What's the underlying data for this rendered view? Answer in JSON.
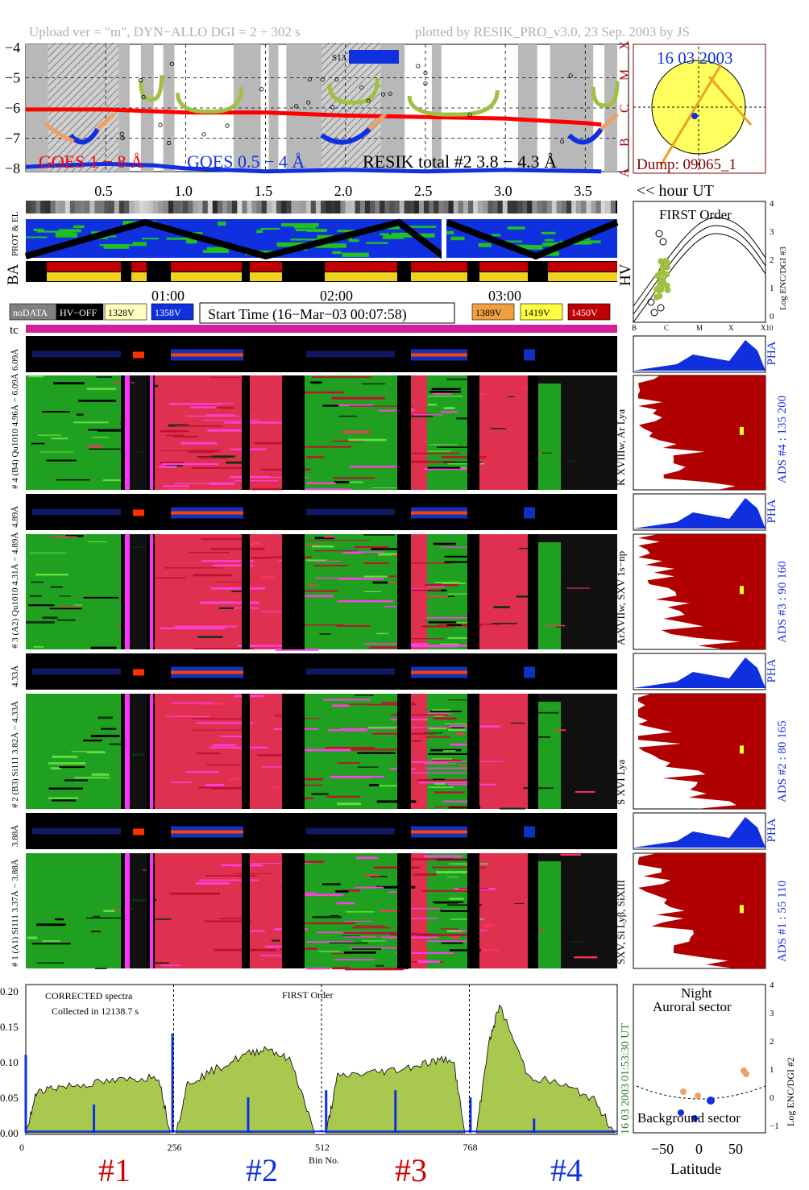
{
  "header": {
    "left": "Upload ver = \"m\", DYN−ALLO DGI =   2 ÷ 302 s",
    "right": "plotted by RESIK_PRO_v3.0, 23 Sep. 2003 by JS"
  },
  "goes": {
    "y_ticks": [
      "−4",
      "−5",
      "−6",
      "−7",
      "−8"
    ],
    "x_ticks": [
      "0.5",
      "1.0",
      "1.5",
      "2.0",
      "2.5",
      "3.0",
      "3.5"
    ],
    "class_letters": [
      "X",
      "M",
      "C",
      "B",
      "A"
    ],
    "label_red": "GOES 1 − 8 Å",
    "label_blue": "GOES 0.5 − 4 Å",
    "label_black": "RESIK total #2  3.8 − 4.3 Å",
    "s13_label": "S13",
    "hour_label": "<< hour UT",
    "colors": {
      "red": "#ff0000",
      "blue": "#1030e0",
      "green": "#a0c040",
      "orange": "#f0a060"
    },
    "red_series": [
      [
        0.0,
        -6.05
      ],
      [
        0.5,
        -6.05
      ],
      [
        1.0,
        -6.15
      ],
      [
        1.5,
        -6.15
      ],
      [
        2.0,
        -6.25
      ],
      [
        2.5,
        -6.3
      ],
      [
        3.0,
        -6.35
      ],
      [
        3.5,
        -6.5
      ],
      [
        3.6,
        -6.55
      ]
    ],
    "blue_series": [
      [
        0.0,
        -7.95
      ],
      [
        0.2,
        -7.9
      ],
      [
        0.5,
        -7.85
      ],
      [
        0.8,
        -7.9
      ],
      [
        1.0,
        -8.0
      ],
      [
        1.5,
        -8.1
      ],
      [
        2.0,
        -8.05
      ],
      [
        2.5,
        -8.1
      ],
      [
        3.0,
        -8.05
      ],
      [
        3.6,
        -8.1
      ]
    ]
  },
  "sun": {
    "date": "16 03 2003",
    "dump": "Dump: 09065_1"
  },
  "bands": {
    "prot_label": "PROT & EL",
    "ba_label": "BA",
    "hv_label": "HV"
  },
  "first_order": {
    "title": "FIRST Order",
    "y_label": "Log ENC/DGI #3",
    "y_ticks": [
      "4",
      "3",
      "2",
      "1",
      "0"
    ],
    "x_ticks": [
      "B",
      "C",
      "M",
      "X",
      "X10"
    ]
  },
  "legend": {
    "times": [
      "01:00",
      "02:00",
      "03:00"
    ],
    "start_time": "Start Time (16−Mar−03 00:07:58)",
    "boxes": [
      {
        "label": "noDATA",
        "bg": "#808080",
        "fg": "#ffffff"
      },
      {
        "label": "HV−OFF",
        "bg": "#000000",
        "fg": "#ffffff"
      },
      {
        "label": "1328V",
        "bg": "#ffffc0",
        "fg": "#000000"
      },
      {
        "label": "1358V",
        "bg": "#1030e0",
        "fg": "#ffffff"
      },
      {
        "label": "1389V",
        "bg": "#f0a040",
        "fg": "#000000"
      },
      {
        "label": "1419V",
        "bg": "#ffff40",
        "fg": "#000000"
      },
      {
        "label": "1450V",
        "bg": "#c00000",
        "fg": "#ffffff"
      }
    ],
    "tc_label": "tc"
  },
  "channels": {
    "left_labels": [
      "6.09Å",
      "# 4 (B4) Qu1010 4.96Å − 6.09Å",
      "4.89Å",
      "# 3 (A2) Qu1010 4.31Å − 4.89Å",
      "4.33Å",
      "# 2 (B3) Si111 3.82Å − 4.33Å",
      "3.88Å",
      "# 1 (A1) Si111 3.37Å − 3.88Å"
    ],
    "line_labels": [
      "SXV, Si Lyβ, SiXIII",
      "S XVI Lya",
      "ArXVIIw, SXV 1s−np",
      "K XVIIIw, Ar Lya"
    ],
    "ads_labels": [
      "ADS #4 :   135 200",
      "ADS #3 :    90 160",
      "ADS #2 :    80 165",
      "ADS #1 :    55 110"
    ],
    "pha_label": "PHA"
  },
  "spectrum": {
    "note1": "CORRECTED spectra",
    "note2": "Collected in 12138.7 s",
    "note3": "FIRST Order",
    "y_ticks": [
      "0.20",
      "0.15",
      "0.10",
      "0.05",
      "0.00"
    ],
    "x_ticks": [
      "0",
      "256",
      "512",
      "768"
    ],
    "x_label": "Bin No.",
    "side_time": "01:53:30 UT",
    "side_date": "16 03 2003",
    "segments": [
      {
        "label": "#1",
        "color": "#d00000"
      },
      {
        "label": "#2",
        "color": "#1030e0"
      },
      {
        "label": "#3",
        "color": "#d00000"
      },
      {
        "label": "#4",
        "color": "#1030e0"
      }
    ]
  },
  "latitude": {
    "night": "Night",
    "auroral": "Auroral sector",
    "background": "Background sector",
    "x_label": "Latitude",
    "x_ticks": [
      "−50",
      "0",
      "50"
    ],
    "y_ticks": [
      "4",
      "3",
      "2",
      "1",
      "0",
      "−1"
    ],
    "y_label": "Log ENC/DGI #2"
  },
  "chart_data": [
    {
      "type": "line",
      "title": "",
      "xlabel": "hour UT",
      "ylabel": "",
      "xlim": [
        0.0,
        3.7
      ],
      "ylim": [
        -8,
        -4
      ],
      "x_ticks": [
        0.5,
        1.0,
        1.5,
        2.0,
        2.5,
        3.0,
        3.5
      ],
      "series": [
        {
          "name": "GOES 1 − 8 Å",
          "x": [
            0.0,
            0.5,
            1.0,
            1.5,
            2.0,
            2.5,
            3.0,
            3.5,
            3.6
          ],
          "y": [
            -6.05,
            -6.05,
            -6.15,
            -6.15,
            -6.25,
            -6.3,
            -6.35,
            -6.5,
            -6.55
          ]
        },
        {
          "name": "GOES 0.5 − 4 Å",
          "x": [
            0.0,
            0.5,
            1.0,
            1.5,
            2.0,
            2.5,
            3.0,
            3.6
          ],
          "y": [
            -7.95,
            -7.85,
            -8.0,
            -8.1,
            -8.05,
            -8.1,
            -8.05,
            -8.1
          ]
        }
      ]
    },
    {
      "type": "area",
      "title": "",
      "xlabel": "Bin No.",
      "ylabel": "",
      "xlim": [
        0,
        1024
      ],
      "ylim": [
        0,
        0.2
      ],
      "x_ticks": [
        0,
        256,
        512,
        768
      ],
      "segments": [
        {
          "name": "#1",
          "x": [
            0,
            20,
            60,
            120,
            180,
            230,
            250
          ],
          "y": [
            0.0,
            0.06,
            0.065,
            0.07,
            0.075,
            0.08,
            0.0
          ]
        },
        {
          "name": "#2",
          "x": [
            260,
            280,
            330,
            380,
            420,
            460,
            500
          ],
          "y": [
            0.0,
            0.07,
            0.09,
            0.11,
            0.12,
            0.1,
            0.0
          ]
        },
        {
          "name": "#3",
          "x": [
            520,
            540,
            600,
            650,
            700,
            740,
            760
          ],
          "y": [
            0.0,
            0.08,
            0.085,
            0.09,
            0.1,
            0.105,
            0.0
          ]
        },
        {
          "name": "#4",
          "x": [
            780,
            800,
            820,
            870,
            920,
            980,
            1020
          ],
          "y": [
            0.0,
            0.12,
            0.18,
            0.08,
            0.07,
            0.05,
            0.0
          ]
        }
      ]
    }
  ]
}
